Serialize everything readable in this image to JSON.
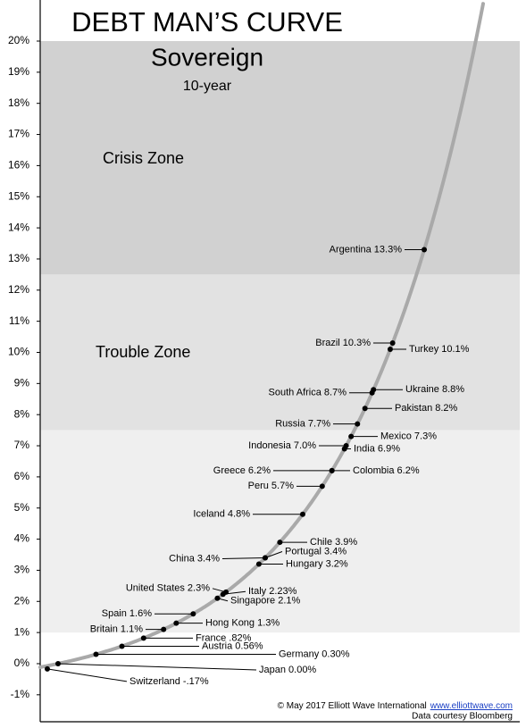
{
  "chart_data": {
    "type": "scatter",
    "title": "DEBT MAN’S CURVE",
    "subtitle": "Sovereign",
    "subtitle2": "10-year",
    "zones": [
      {
        "name": "Crisis Zone",
        "from": 12.5,
        "to": 20,
        "color": "#d1d1d1"
      },
      {
        "name": "Trouble Zone",
        "from": 7.5,
        "to": 12.5,
        "color": "#e2e2e2"
      },
      {
        "from": 1,
        "to": 7.5,
        "color": "#efefef"
      }
    ],
    "ylim": [
      -1.866,
      21.32
    ],
    "yticks": [
      {
        "value": -1,
        "label": "-1%"
      },
      {
        "value": 0,
        "label": "0%"
      },
      {
        "value": 1,
        "label": "1%"
      },
      {
        "value": 2,
        "label": "2%"
      },
      {
        "value": 3,
        "label": "3%"
      },
      {
        "value": 4,
        "label": "4%"
      },
      {
        "value": 5,
        "label": "5%"
      },
      {
        "value": 6,
        "label": "6%"
      },
      {
        "value": 7,
        "label": "7%"
      },
      {
        "value": 8,
        "label": "8%"
      },
      {
        "value": 9,
        "label": "9%"
      },
      {
        "value": 10,
        "label": "10%"
      },
      {
        "value": 11,
        "label": "11%"
      },
      {
        "value": 12,
        "label": "12%"
      },
      {
        "value": 13,
        "label": "13%"
      },
      {
        "value": 14,
        "label": "14%"
      },
      {
        "value": 15,
        "label": "15%"
      },
      {
        "value": 16,
        "label": "16%"
      },
      {
        "value": 17,
        "label": "17%"
      },
      {
        "value": 18,
        "label": "18%"
      },
      {
        "value": 19,
        "label": "19%"
      },
      {
        "value": 20,
        "label": "20%"
      }
    ],
    "curve_color": "#a9a9a9",
    "color": "#000000",
    "values": [
      13.3,
      10.3,
      10.1,
      8.8,
      8.7,
      8.2,
      7.7,
      7.3,
      7.0,
      6.9,
      6.2,
      6.2,
      5.7,
      4.8,
      3.9,
      3.4,
      3.4,
      3.2,
      2.3,
      2.23,
      2.1,
      1.6,
      1.3,
      1.1,
      0.82,
      0.56,
      0.3,
      0.0,
      -0.17
    ],
    "value_labels": [
      "Argentina 13.3%",
      "Brazil 10.3%",
      "Turkey 10.1%",
      "Ukraine 8.8%",
      "South Africa 8.7%",
      "Pakistan 8.2%",
      "Russia 7.7%",
      "Mexico 7.3%",
      "Indonesia 7.0%",
      "India 6.9%",
      "Greece 6.2%",
      "Colombia 6.2%",
      "Peru 5.7%",
      "Iceland 4.8%",
      "Chile 3.9%",
      "Portugal 3.4%",
      "China 3.4%",
      "Hungary 3.2%",
      "United States 2.3%",
      "Italy 2.23%",
      "Singapore 2.1%",
      "Spain 1.6%",
      "Hong Kong 1.3%",
      "Britain 1.1%",
      "France .82%",
      "Austria 0.56%",
      "Germany 0.30%",
      "Japan 0.00%",
      "Switzerland -.17%"
    ],
    "credit": "© May 2017 Elliott Wave International",
    "credit_link": "www.elliottwave.com",
    "source": "Data courtesy Bloomberg"
  }
}
